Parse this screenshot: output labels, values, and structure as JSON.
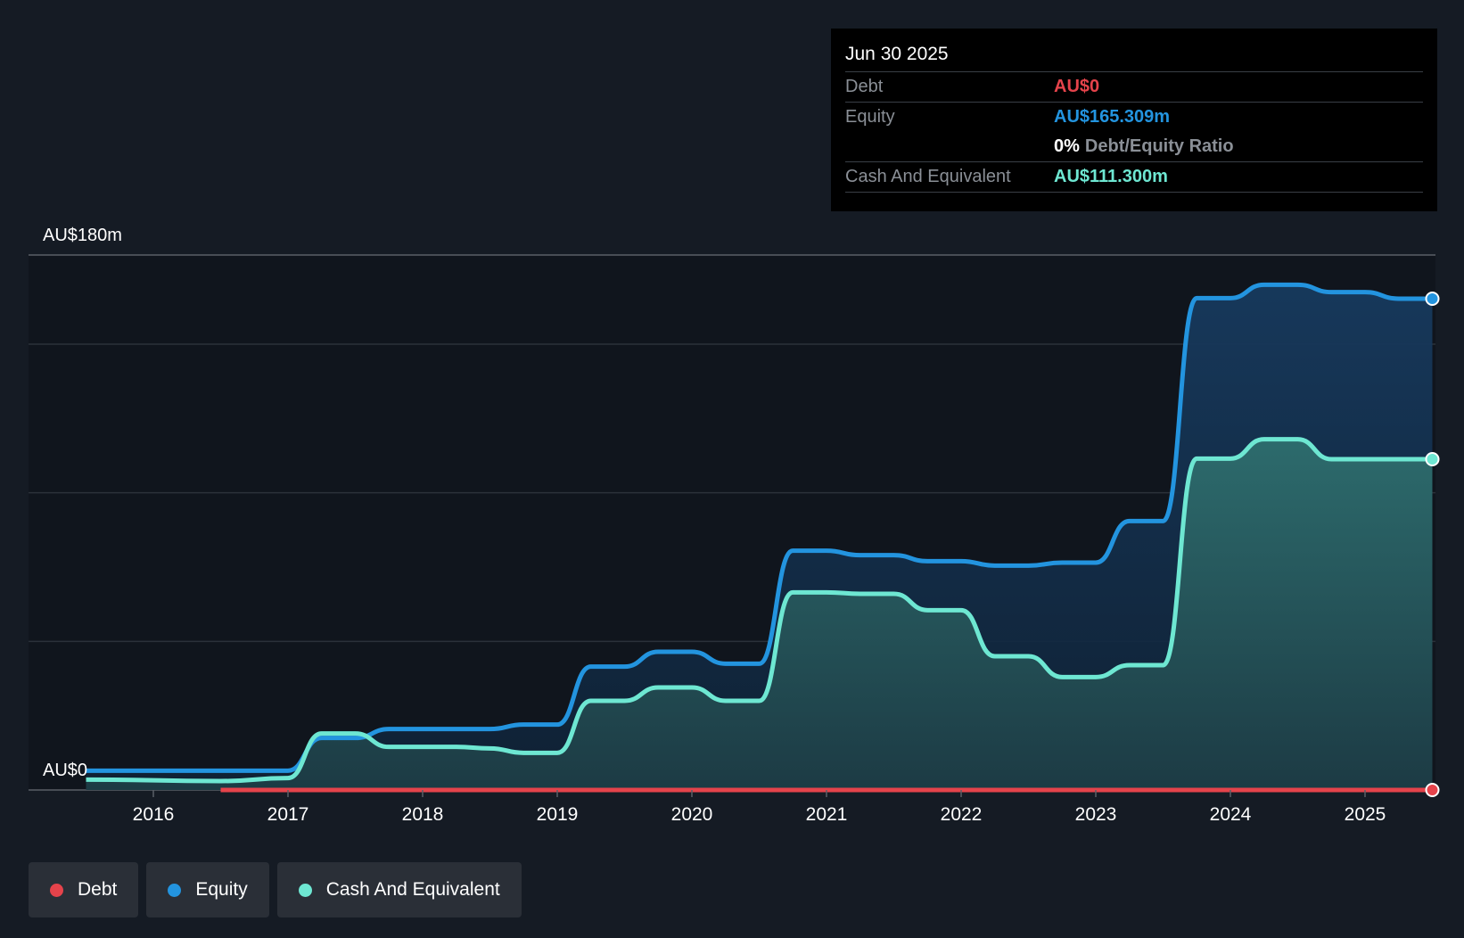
{
  "colors": {
    "debt": "#e5434b",
    "equity": "#2394df",
    "cash": "#6ee7d2",
    "background": "#151b24"
  },
  "tooltip": {
    "date": "Jun 30 2025",
    "debt_label": "Debt",
    "debt_value": "AU$0",
    "equity_label": "Equity",
    "equity_value": "AU$165.309m",
    "ratio_value": "0%",
    "ratio_label": "Debt/Equity Ratio",
    "cash_label": "Cash And Equivalent",
    "cash_value": "AU$111.300m"
  },
  "legend": [
    {
      "label": "Debt",
      "color": "#e5434b"
    },
    {
      "label": "Equity",
      "color": "#2394df"
    },
    {
      "label": "Cash And Equivalent",
      "color": "#6ee7d2"
    }
  ],
  "chart_data": {
    "type": "area",
    "ylim": [
      0,
      180
    ],
    "y_tick_labels": [
      "AU$180m",
      "AU$0"
    ],
    "x_tick_labels": [
      "2016",
      "2017",
      "2018",
      "2019",
      "2020",
      "2021",
      "2022",
      "2023",
      "2024",
      "2025"
    ],
    "grid": true,
    "legend_position": "bottom-left",
    "series": [
      {
        "name": "Equity",
        "x": [
          2015.5,
          2016.5,
          2017.0,
          2017.25,
          2017.5,
          2017.75,
          2018.5,
          2018.75,
          2019.0,
          2019.25,
          2019.5,
          2019.75,
          2020.0,
          2020.25,
          2020.5,
          2020.75,
          2021.0,
          2021.25,
          2021.5,
          2021.75,
          2022.0,
          2022.25,
          2022.5,
          2022.75,
          2023.0,
          2023.25,
          2023.5,
          2023.75,
          2024.0,
          2024.25,
          2024.5,
          2024.75,
          2025.0,
          2025.25,
          2025.5
        ],
        "values": [
          6.5,
          6.5,
          6.5,
          17.5,
          17.5,
          20.5,
          20.5,
          22.0,
          22.0,
          41.5,
          41.5,
          46.5,
          46.5,
          42.5,
          42.5,
          80.5,
          80.5,
          79.0,
          79.0,
          77.0,
          77.0,
          75.5,
          75.5,
          76.5,
          76.5,
          90.5,
          90.5,
          165.5,
          165.5,
          170.0,
          170.0,
          167.5,
          167.5,
          165.309,
          165.309
        ]
      },
      {
        "name": "Cash And Equivalent",
        "x": [
          2015.5,
          2016.5,
          2017.0,
          2017.25,
          2017.5,
          2017.75,
          2018.25,
          2018.5,
          2018.75,
          2019.0,
          2019.25,
          2019.5,
          2019.75,
          2020.0,
          2020.25,
          2020.5,
          2020.75,
          2021.0,
          2021.25,
          2021.5,
          2021.75,
          2022.0,
          2022.25,
          2022.5,
          2022.75,
          2023.0,
          2023.25,
          2023.5,
          2023.75,
          2024.0,
          2024.25,
          2024.5,
          2024.75,
          2025.0,
          2025.25,
          2025.5
        ],
        "values": [
          3.5,
          3.0,
          4.0,
          19.0,
          19.0,
          14.5,
          14.5,
          14.0,
          12.5,
          12.5,
          30.0,
          30.0,
          34.5,
          34.5,
          30.0,
          30.0,
          66.5,
          66.5,
          66.0,
          66.0,
          60.5,
          60.5,
          45.0,
          45.0,
          38.0,
          38.0,
          42.0,
          42.0,
          111.5,
          111.5,
          118.0,
          118.0,
          111.3,
          111.3,
          111.3,
          111.3
        ]
      },
      {
        "name": "Debt",
        "x": [
          2016.5,
          2025.5
        ],
        "values": [
          0,
          0
        ]
      }
    ]
  }
}
